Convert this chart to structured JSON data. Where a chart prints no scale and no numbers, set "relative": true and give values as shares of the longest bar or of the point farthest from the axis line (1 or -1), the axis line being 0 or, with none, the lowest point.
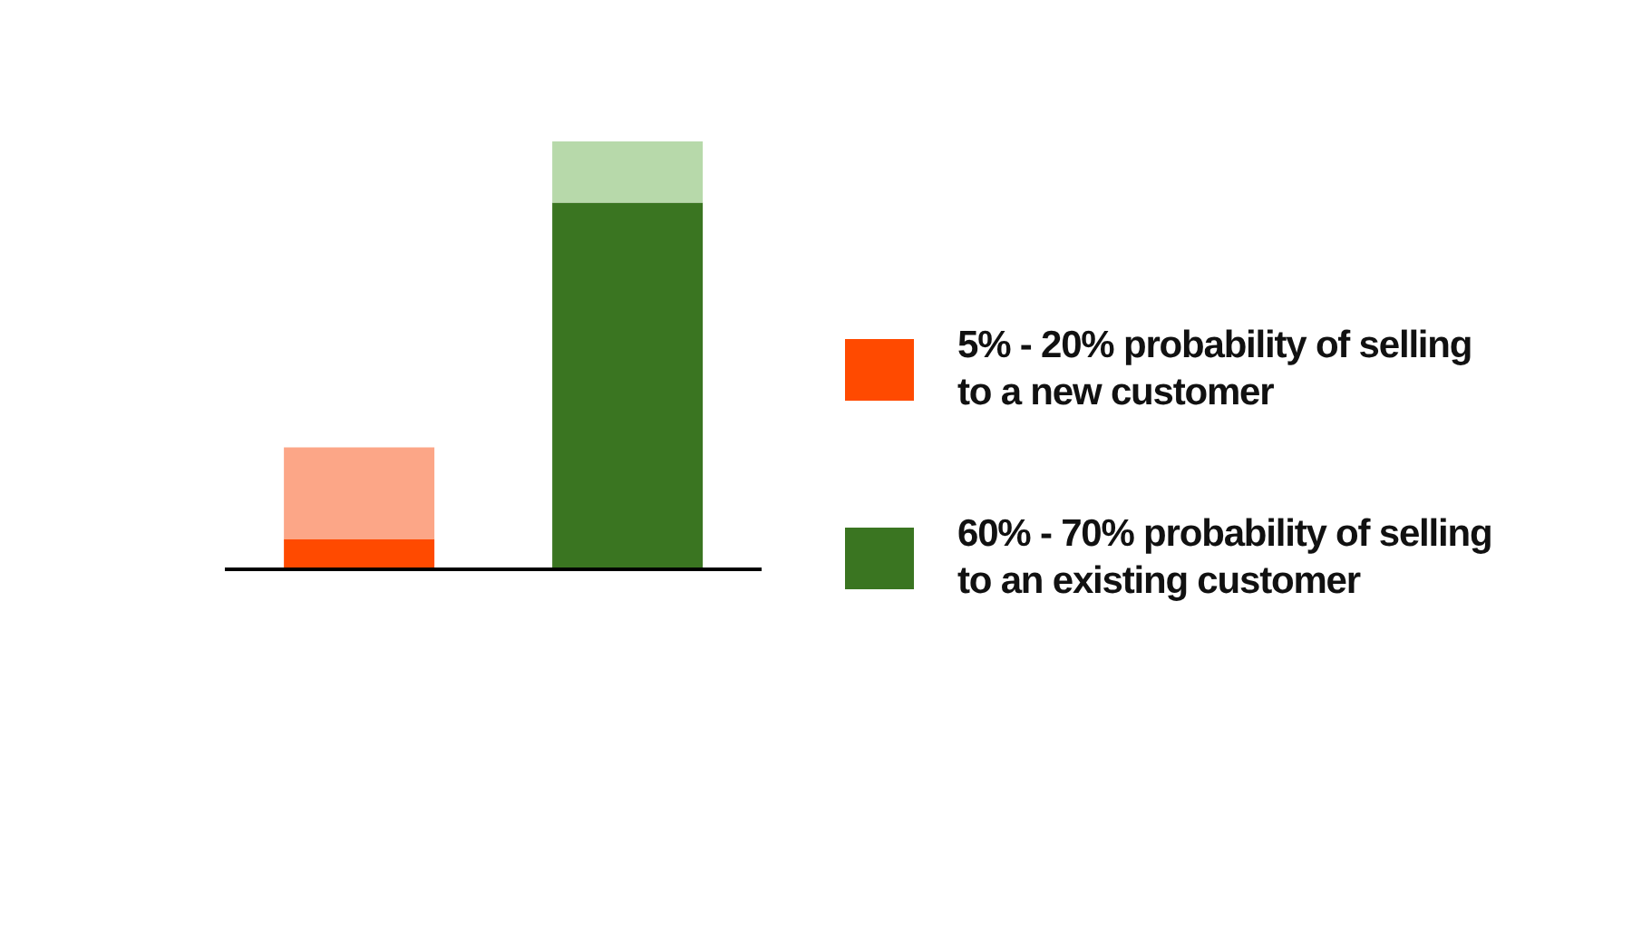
{
  "chart_data": {
    "type": "bar",
    "stacked": true,
    "relative": true,
    "categories": [
      null,
      null
    ],
    "legend": "right",
    "grid": false,
    "series": [
      {
        "name": "5% - 20% probability of selling to a new customer",
        "color": "#ff4a00",
        "values": [
          0.071,
          null
        ]
      },
      {
        "color": "#fca687",
        "values": [
          0.214,
          null
        ]
      },
      {
        "name": "60% - 70% probability of selling to an existing customer",
        "color": "#3a7521",
        "values": [
          null,
          0.857
        ]
      },
      {
        "color": "#b7d9aa",
        "values": [
          null,
          0.143
        ]
      }
    ]
  }
}
